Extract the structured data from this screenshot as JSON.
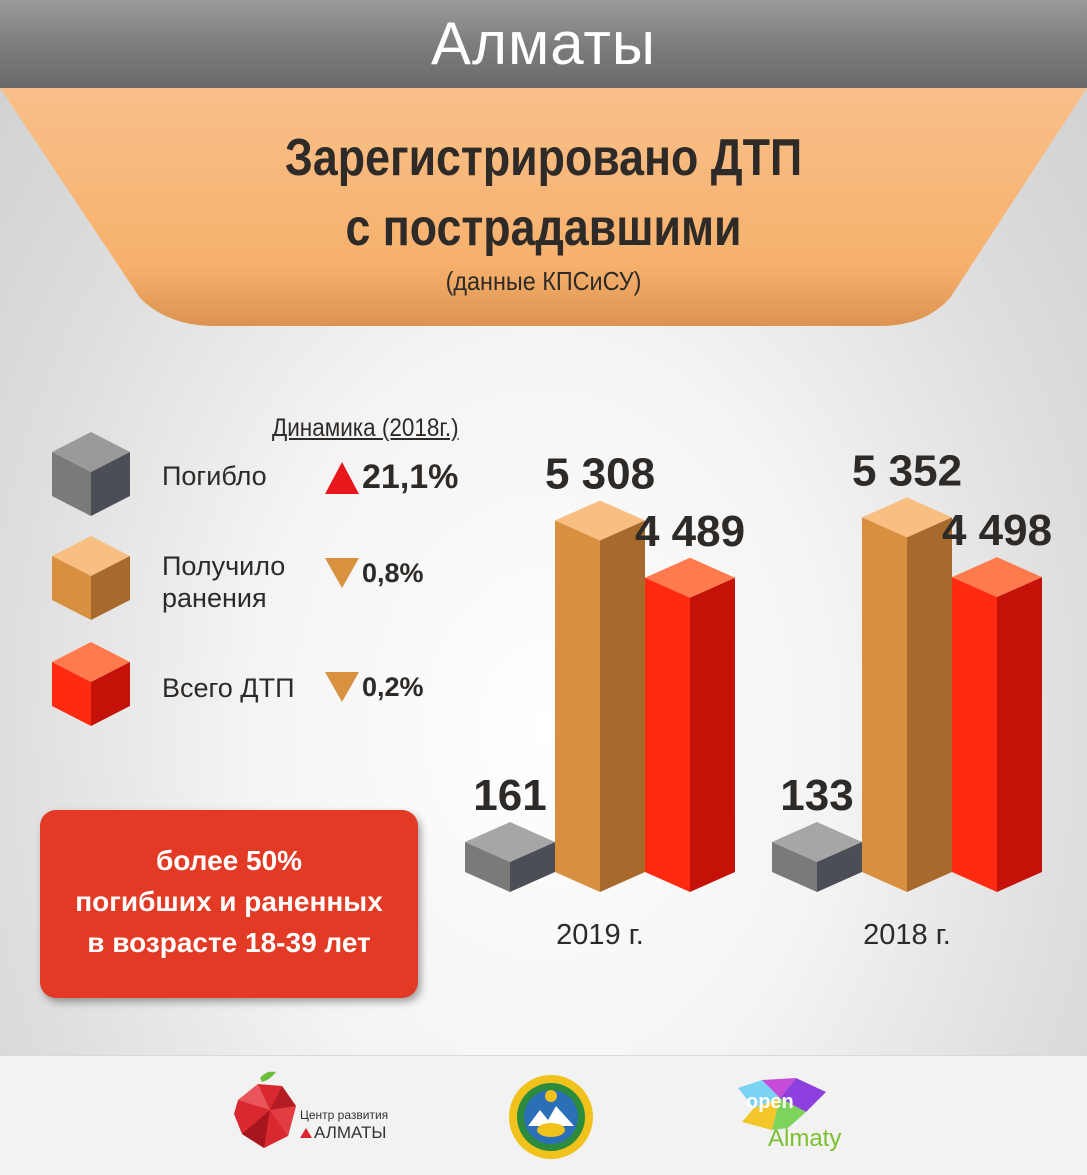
{
  "header": {
    "city": "Алматы"
  },
  "title": {
    "line1": "Зарегистрировано ДТП",
    "line2": "с пострадавшими",
    "source": "(данные КПСиСУ)"
  },
  "legend": {
    "dynamics_title": "Динамика (2018г.)",
    "items": [
      {
        "label": "Погибло",
        "change": "21,1%",
        "direction": "up",
        "color": "#7a7a7a"
      },
      {
        "label": "Получило\nранения",
        "change": "0,8%",
        "direction": "down",
        "color": "#d89040"
      },
      {
        "label": "Всего ДТП",
        "change": "0,2%",
        "direction": "down",
        "color": "#ff2a10"
      }
    ]
  },
  "note": {
    "text": "более 50%\nпогибших и раненных\nв возрасте 18-39 лет"
  },
  "chart_data": {
    "type": "bar",
    "categories": [
      "2019 г.",
      "2018 г."
    ],
    "series": [
      {
        "name": "Погибло",
        "values": [
          161,
          133
        ],
        "labels": [
          "161",
          "133"
        ],
        "color": "#7a7a7a"
      },
      {
        "name": "Получило ранения",
        "values": [
          5308,
          5352
        ],
        "labels": [
          "5 308",
          "5 352"
        ],
        "color": "#d89040"
      },
      {
        "name": "Всего ДТП",
        "values": [
          4489,
          4498
        ],
        "labels": [
          "4 489",
          "4 498"
        ],
        "color": "#ff2a10"
      }
    ]
  },
  "footer": {
    "logo1": {
      "line1": "Центр развития",
      "line2": "АЛМАТЫ"
    },
    "logo3": {
      "line1": "open",
      "line2": "Almaty"
    }
  },
  "colors": {
    "accent": "#f7b576",
    "header": "#7f7f7f",
    "note": "#e23a24"
  }
}
